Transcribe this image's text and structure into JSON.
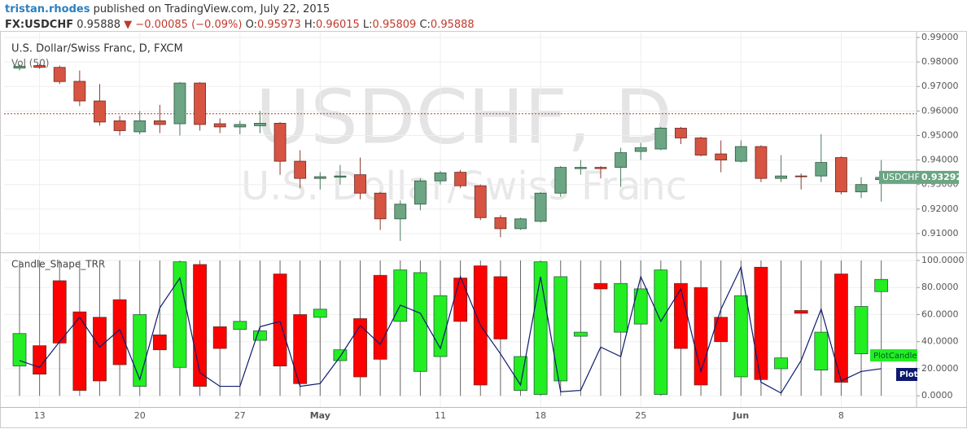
{
  "header": {
    "author": "tristan.rhodes",
    "published": "published on TradingView.com, July 22, 2015",
    "symbol": "FX:USDCHF",
    "last": 0.95888,
    "change": "▼ −0.00085 (−0.09%)",
    "ohlc": [
      {
        "label": "O:",
        "value": 0.95973
      },
      {
        "label": "H:",
        "value": 0.96015
      },
      {
        "label": "L:",
        "value": 0.95809
      },
      {
        "label": "C:",
        "value": 0.95888
      }
    ]
  },
  "chart_data": [
    {
      "type": "candlestick",
      "title": "U.S. Dollar/Swiss Franc, D, FXCM",
      "indicator": "Vol (50)",
      "watermark": "USDCHF, D",
      "watermark_sub": "U.S. Dollar/Swiss Franc",
      "symbol_label": "USDCHF",
      "up_color": "#6ba583",
      "down_color": "#d75442",
      "grid": true,
      "categories": [
        null,
        "13",
        null,
        null,
        null,
        null,
        "20",
        null,
        null,
        null,
        null,
        "27",
        null,
        null,
        null,
        "May",
        null,
        null,
        null,
        null,
        null,
        "11",
        null,
        null,
        null,
        null,
        "18",
        null,
        null,
        null,
        null,
        "25",
        null,
        null,
        null,
        null,
        "Jun",
        null,
        null,
        null,
        null,
        "8",
        null,
        null
      ],
      "open": [
        0.9775,
        0.9785,
        0.9778,
        0.9721,
        0.9641,
        0.956,
        0.9515,
        0.956,
        0.9548,
        0.9714,
        0.9548,
        0.9535,
        0.954,
        0.955,
        0.9395,
        0.9325,
        0.933,
        0.934,
        0.9265,
        0.916,
        0.922,
        0.9315,
        0.935,
        0.9295,
        0.9165,
        0.912,
        0.915,
        0.9265,
        0.9365,
        0.937,
        0.937,
        0.9435,
        0.9445,
        0.953,
        0.949,
        0.9425,
        0.9395,
        0.9455,
        0.9325,
        0.9335,
        0.9335,
        0.941,
        0.927,
        0.932
      ],
      "high": [
        0.979,
        0.9792,
        0.9785,
        0.9765,
        0.971,
        0.958,
        0.96,
        0.9625,
        0.9718,
        0.9718,
        0.957,
        0.956,
        0.96,
        0.9555,
        0.944,
        0.935,
        0.938,
        0.941,
        0.927,
        0.9235,
        0.9325,
        0.9355,
        0.936,
        0.93,
        0.9175,
        0.9165,
        0.927,
        0.9375,
        0.94,
        0.9375,
        0.945,
        0.947,
        0.9535,
        0.9535,
        0.9495,
        0.948,
        0.948,
        0.946,
        0.942,
        0.9345,
        0.9505,
        0.9415,
        0.933,
        0.94
      ],
      "low": [
        0.9765,
        0.9772,
        0.971,
        0.962,
        0.954,
        0.95,
        0.9505,
        0.951,
        0.95,
        0.952,
        0.951,
        0.9505,
        0.951,
        0.934,
        0.9285,
        0.928,
        0.93,
        0.924,
        0.9115,
        0.907,
        0.9195,
        0.93,
        0.9285,
        0.9155,
        0.9085,
        0.9115,
        0.9145,
        0.925,
        0.934,
        0.9325,
        0.929,
        0.94,
        0.944,
        0.9465,
        0.9415,
        0.935,
        0.939,
        0.931,
        0.931,
        0.928,
        0.931,
        0.926,
        0.9245,
        0.923
      ],
      "close": [
        0.9782,
        0.9778,
        0.972,
        0.9641,
        0.9555,
        0.952,
        0.956,
        0.9545,
        0.9714,
        0.9545,
        0.9535,
        0.9545,
        0.955,
        0.9395,
        0.9325,
        0.9332,
        0.9335,
        0.9265,
        0.916,
        0.922,
        0.9315,
        0.9348,
        0.9295,
        0.9165,
        0.912,
        0.916,
        0.9265,
        0.937,
        0.937,
        0.9365,
        0.943,
        0.945,
        0.953,
        0.949,
        0.942,
        0.94,
        0.9455,
        0.9325,
        0.9335,
        0.9333,
        0.939,
        0.927,
        0.93,
        0.93292
      ],
      "ylim": [
        0.903,
        0.992
      ],
      "yticks": [
        {
          "value": 0.91,
          "label": "0.91000"
        },
        {
          "value": 0.92,
          "label": "0.92000"
        },
        {
          "value": 0.93,
          "label": "0.93000"
        },
        {
          "value": 0.94,
          "label": "0.94000"
        },
        {
          "value": 0.95,
          "label": "0.95000"
        },
        {
          "value": 0.96,
          "label": "0.96000"
        },
        {
          "value": 0.97,
          "label": "0.97000"
        },
        {
          "value": 0.98,
          "label": "0.98000"
        },
        {
          "value": 0.99,
          "label": "0.99000"
        }
      ]
    },
    {
      "type": "candlestick",
      "title": "Candle_Shape_TRR",
      "grid": true,
      "series": [
        {
          "name": "PlotCandle",
          "up_color": "#22ee22",
          "down_color": "#ff0000",
          "open": [
            22,
            37,
            85,
            62,
            58,
            71,
            7,
            45,
            21,
            97,
            51,
            49,
            41,
            90,
            60,
            58,
            26,
            57,
            89,
            55,
            18,
            29,
            87,
            96,
            88,
            4,
            1,
            11,
            44,
            83,
            47,
            53,
            1,
            83,
            80,
            58,
            14,
            95,
            20,
            63,
            19,
            90,
            31,
            77
          ],
          "high": [
            100,
            100,
            100,
            100,
            100,
            100,
            100,
            100,
            100,
            100,
            100,
            100,
            100,
            100,
            100,
            100,
            100,
            100,
            100,
            100,
            100,
            100,
            100,
            100,
            100,
            100,
            100,
            100,
            100,
            100,
            100,
            100,
            100,
            100,
            100,
            100,
            100,
            100,
            100,
            100,
            100,
            100,
            100,
            100
          ],
          "low": [
            0,
            0,
            0,
            0,
            0,
            0,
            0,
            0,
            0,
            0,
            0,
            0,
            0,
            0,
            0,
            0,
            0,
            0,
            0,
            0,
            0,
            0,
            0,
            0,
            0,
            0,
            0,
            0,
            0,
            0,
            0,
            0,
            0,
            0,
            0,
            0,
            0,
            0,
            0,
            0,
            0,
            0,
            0,
            0
          ],
          "close": [
            46,
            16,
            39,
            4,
            11,
            23,
            60,
            34,
            99,
            7,
            35,
            55,
            48,
            22,
            9,
            64,
            34,
            14,
            27,
            93,
            91,
            74,
            55,
            8,
            42,
            29,
            99,
            88,
            47,
            79,
            83,
            79,
            93,
            35,
            8,
            40,
            74,
            12,
            28,
            61,
            47,
            10,
            66,
            86
          ]
        },
        {
          "name": "Plot",
          "color": "#0d1b6e",
          "values": [
            26,
            21,
            40,
            58,
            36,
            49,
            12,
            65,
            87,
            17,
            7,
            7,
            51,
            55,
            7,
            9,
            29,
            52,
            38,
            67,
            61,
            35,
            88,
            52,
            31,
            8,
            88,
            3,
            4,
            36,
            29,
            88,
            55,
            79,
            18,
            64,
            95,
            10,
            2,
            26,
            64,
            11,
            18,
            20
          ]
        }
      ],
      "ylim": [
        -8.3,
        104.2
      ],
      "yticks": [
        {
          "value": 0,
          "label": "0.0000"
        },
        {
          "value": 20,
          "label": "20.0000"
        },
        {
          "value": 40,
          "label": "40.0000"
        },
        {
          "value": 60,
          "label": "60.0000"
        },
        {
          "value": 80,
          "label": "80.0000"
        },
        {
          "value": 100,
          "label": "100.0000"
        }
      ]
    }
  ]
}
